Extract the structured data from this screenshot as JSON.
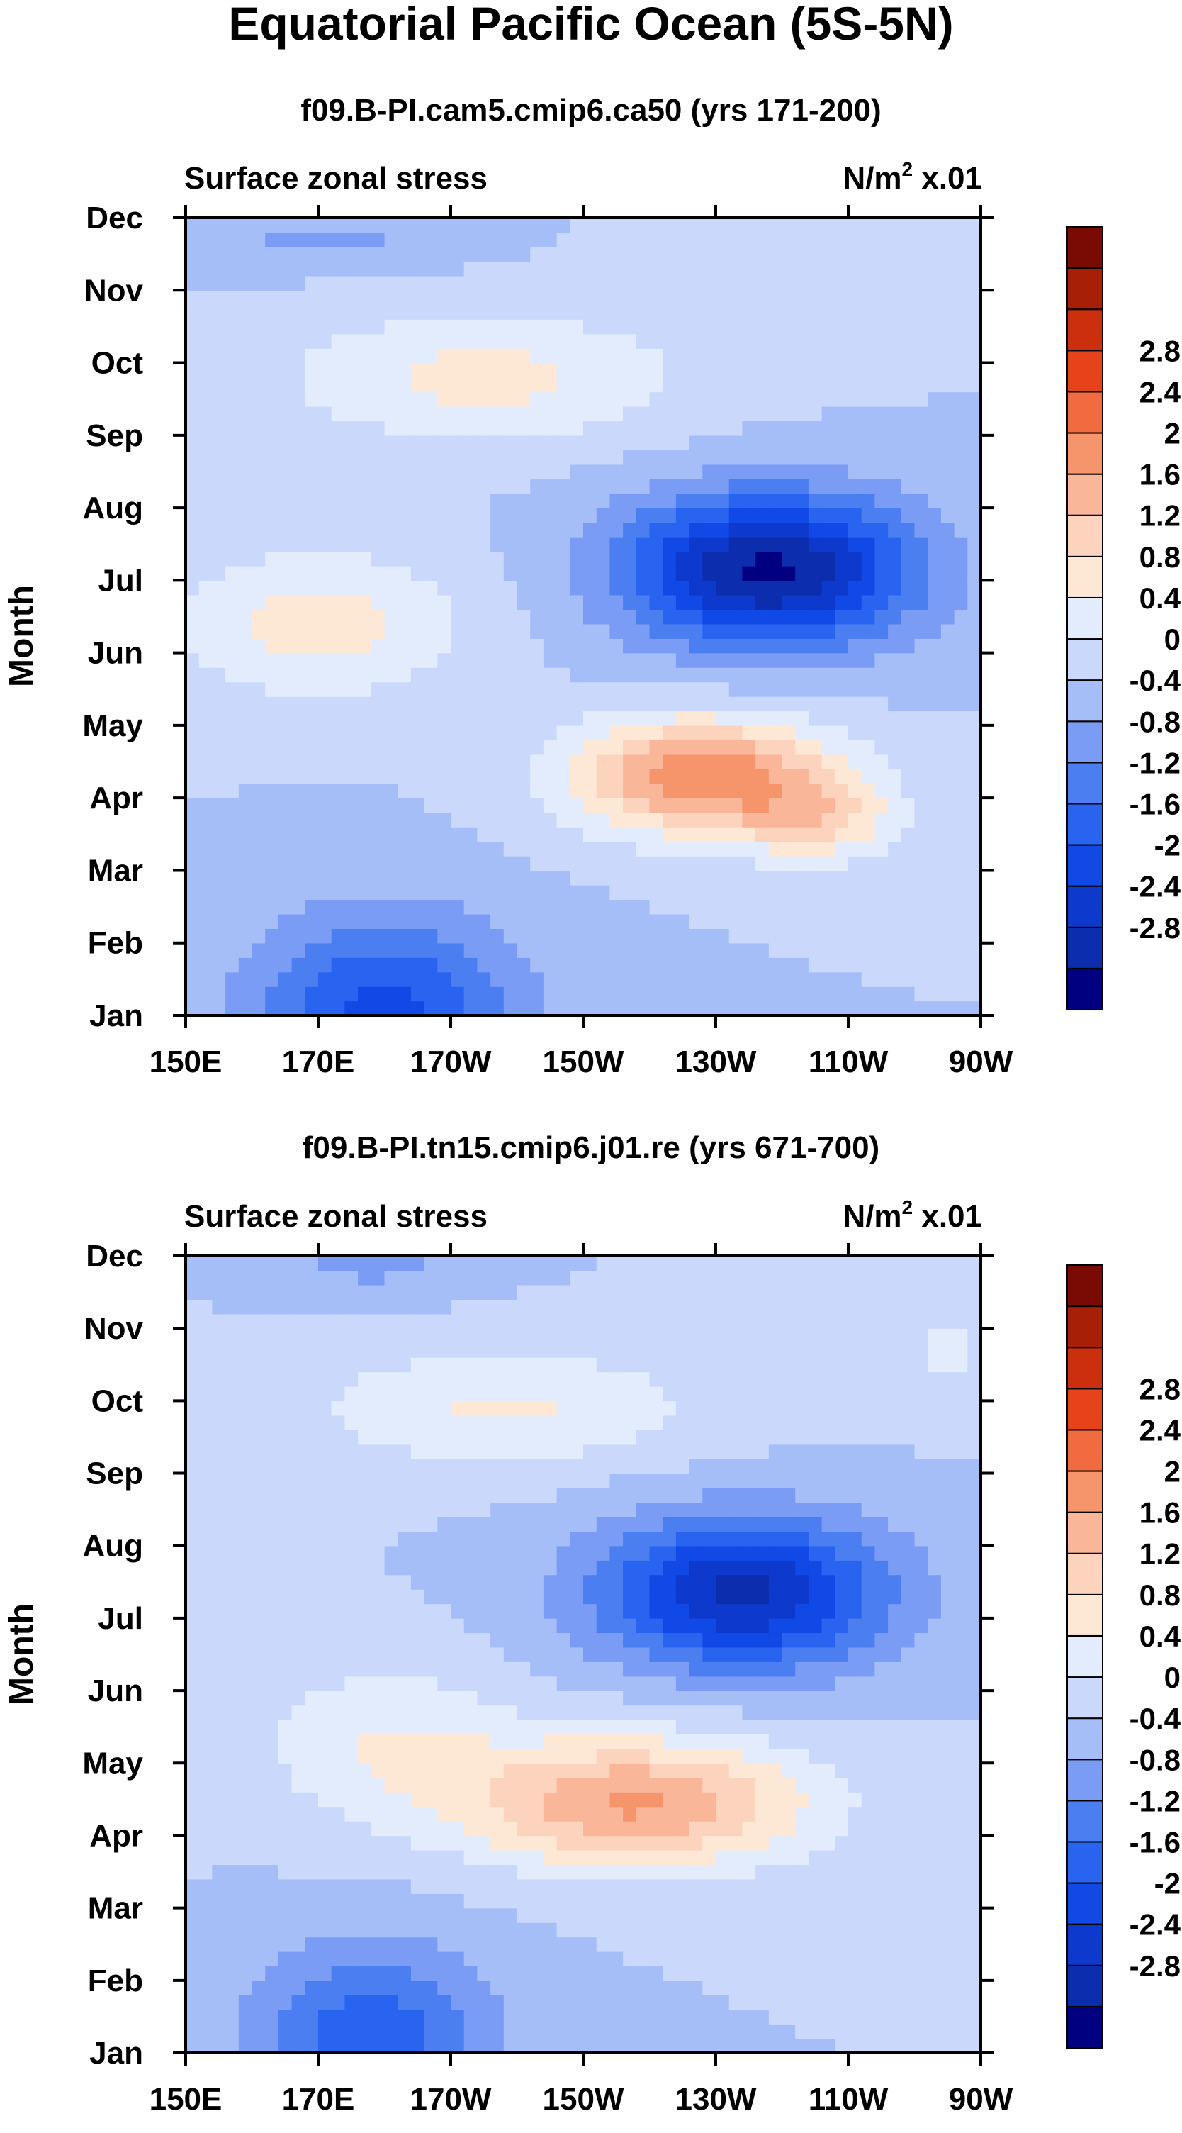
{
  "figure": {
    "title": "Equatorial Pacific Ocean (5S-5N)",
    "colors": [
      "#000080",
      "#0c2dae",
      "#0d39cc",
      "#1149e6",
      "#2864f0",
      "#4b7ef0",
      "#7a9cf4",
      "#a6bef8",
      "#cad9fb",
      "#e3ecfd",
      "#fde8d6",
      "#fcd3bc",
      "#f9b699",
      "#f6946c",
      "#f26a3f",
      "#e6431a",
      "#cb2f0d",
      "#a81f07",
      "#7a0b03"
    ],
    "colorbar_labels": [
      "-2.8",
      "-2.4",
      "-2",
      "-1.6",
      "-1.2",
      "-0.8",
      "-0.4",
      "0",
      "0.4",
      "0.8",
      "1.2",
      "1.6",
      "2",
      "2.4",
      "2.8"
    ]
  },
  "chart_data": [
    {
      "type": "heatmap",
      "subtitle": "f09.B-PI.cam5.cmip6.ca50 (yrs 171-200)",
      "left_label": "Surface zonal stress",
      "right_label_base": "N/m",
      "right_label_exp": "2",
      "right_label_scale": " x.01",
      "ylabel": "Month",
      "x_ticks": [
        "150E",
        "170E",
        "170W",
        "150W",
        "130W",
        "110W",
        "90W"
      ],
      "x_range": [
        150,
        270
      ],
      "y_ticks": [
        "Jan",
        "Feb",
        "Mar",
        "Apr",
        "May",
        "Jun",
        "Jul",
        "Aug",
        "Sep",
        "Oct",
        "Nov",
        "Dec"
      ],
      "levels": [
        -2.8,
        -2.4,
        -2,
        -1.6,
        -1.2,
        -0.8,
        -0.4,
        0,
        0.4,
        0.8,
        1.2,
        1.6,
        2,
        2.4,
        2.8
      ],
      "features": [
        {
          "lon": 238,
          "month": 7.15,
          "amp": -2.9,
          "slon": 22,
          "smon": 1.05
        },
        {
          "lon": 228,
          "month": 4.3,
          "amp": 2.35,
          "slon": 20,
          "smon": 0.8
        },
        {
          "lon": 246,
          "month": 3.7,
          "amp": 1.0,
          "slon": 12,
          "smon": 0.6
        },
        {
          "lon": 180,
          "month": 1.0,
          "amp": -1.75,
          "slon": 20,
          "smon": 1.4
        },
        {
          "lon": 170,
          "month": 6.4,
          "amp": 1.0,
          "slon": 22,
          "smon": 1.0
        },
        {
          "lon": 195,
          "month": 9.8,
          "amp": 0.95,
          "slon": 30,
          "smon": 0.9
        },
        {
          "lon": 250,
          "month": 11.4,
          "amp": 0.3,
          "slon": 30,
          "smon": 0.5
        },
        {
          "lon": 172,
          "month": 11.7,
          "amp": -0.5,
          "slon": 20,
          "smon": 0.4
        }
      ]
    },
    {
      "type": "heatmap",
      "subtitle": "f09.B-PI.tn15.cmip6.j01.re (yrs 671-700)",
      "left_label": "Surface zonal stress",
      "right_label_base": "N/m",
      "right_label_exp": "2",
      "right_label_scale": " x.01",
      "ylabel": "Month",
      "x_ticks": [
        "150E",
        "170E",
        "170W",
        "150W",
        "130W",
        "110W",
        "90W"
      ],
      "x_range": [
        150,
        270
      ],
      "y_ticks": [
        "Jan",
        "Feb",
        "Mar",
        "Apr",
        "May",
        "Jun",
        "Jul",
        "Aug",
        "Sep",
        "Oct",
        "Nov",
        "Dec"
      ],
      "levels": [
        -2.8,
        -2.4,
        -2,
        -1.6,
        -1.2,
        -0.8,
        -0.4,
        0,
        0.4,
        0.8,
        1.2,
        1.6,
        2,
        2.4,
        2.8
      ],
      "features": [
        {
          "lon": 234,
          "month": 7.35,
          "amp": -2.5,
          "slon": 22,
          "smon": 1.05
        },
        {
          "lon": 218,
          "month": 4.45,
          "amp": 2.05,
          "slon": 26,
          "smon": 0.9
        },
        {
          "lon": 180,
          "month": 5.3,
          "amp": 0.75,
          "slon": 20,
          "smon": 1.1
        },
        {
          "lon": 178,
          "month": 1.2,
          "amp": -1.5,
          "slon": 18,
          "smon": 1.3
        },
        {
          "lon": 198,
          "month": 9.9,
          "amp": 0.85,
          "slon": 30,
          "smon": 0.8
        },
        {
          "lon": 178,
          "month": 12.0,
          "amp": -0.6,
          "slon": 14,
          "smon": 0.5
        },
        {
          "lon": 265,
          "month": 10.7,
          "amp": 0.5,
          "slon": 8,
          "smon": 0.8
        }
      ]
    }
  ]
}
